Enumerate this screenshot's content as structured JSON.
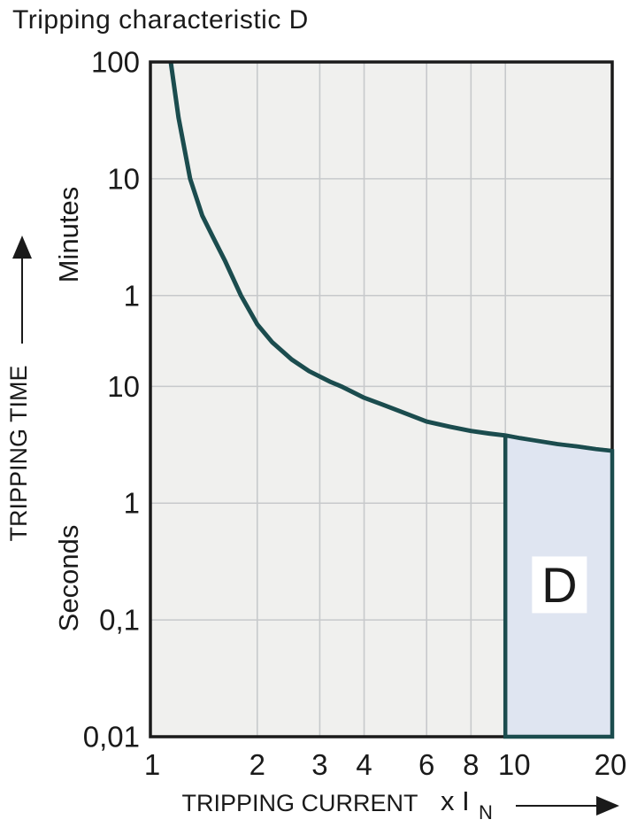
{
  "title": "Tripping characteristic D",
  "colors": {
    "background": "#ffffff",
    "plot_bg": "#f0f0ee",
    "grid": "#c7c9cb",
    "axis_border": "#1a1a1a",
    "curve": "#1b4c4e",
    "region_fill": "#dfe5f1",
    "region_border": "#1b4c4e",
    "text": "#1a1a1a",
    "region_label_bg": "#ffffff"
  },
  "chart_data": {
    "type": "line",
    "title": "Tripping characteristic D",
    "xlabel": "TRIPPING CURRENT",
    "x_unit_main": "x I",
    "x_unit_sub": "N",
    "ylabel": "TRIPPING TIME",
    "y_unit_upper": "Minutes",
    "y_unit_lower": "Seconds",
    "x_scale": "log",
    "x_range": [
      1,
      20
    ],
    "x_ticks": [
      {
        "label": "1",
        "value": 1,
        "dx": 2
      },
      {
        "label": "2",
        "value": 2,
        "dx": 0
      },
      {
        "label": "3",
        "value": 3,
        "dx": 0
      },
      {
        "label": "4",
        "value": 4,
        "dx": 0
      },
      {
        "label": "6",
        "value": 6,
        "dx": 0
      },
      {
        "label": "8",
        "value": 8,
        "dx": 0
      },
      {
        "label": "10",
        "value": 10,
        "dx": 10
      },
      {
        "label": "20",
        "value": 20,
        "dx": -2
      }
    ],
    "y_scale": "log",
    "y_range_seconds": [
      0.01,
      6000
    ],
    "y_ticks": [
      {
        "label": "100",
        "seconds": 6000
      },
      {
        "label": "10",
        "seconds": 600
      },
      {
        "label": "1",
        "seconds": 60
      },
      {
        "label": "10",
        "seconds": 10
      },
      {
        "label": "1",
        "seconds": 1
      },
      {
        "label": "0,1",
        "seconds": 0.1
      },
      {
        "label": "0,01",
        "seconds": 0.01
      }
    ],
    "grid": true,
    "legend": false,
    "series": [
      {
        "name": "thermal-tripping-curve",
        "points": [
          [
            1.141,
            6000
          ],
          [
            1.2,
            2000
          ],
          [
            1.294,
            600
          ],
          [
            1.4,
            290
          ],
          [
            1.5,
            190
          ],
          [
            1.62,
            120
          ],
          [
            1.8,
            60
          ],
          [
            2.0,
            34
          ],
          [
            2.2,
            24
          ],
          [
            2.5,
            17
          ],
          [
            2.8,
            13.5
          ],
          [
            3.2,
            11
          ],
          [
            3.45,
            10
          ],
          [
            4.0,
            8.0
          ],
          [
            4.5,
            7.0
          ],
          [
            5.0,
            6.2
          ],
          [
            6.0,
            5.0
          ],
          [
            7.0,
            4.5
          ],
          [
            8.0,
            4.15
          ],
          [
            9.0,
            3.95
          ],
          [
            10.0,
            3.8
          ],
          [
            11.0,
            3.6
          ],
          [
            12.0,
            3.45
          ],
          [
            14.0,
            3.2
          ],
          [
            16.0,
            3.05
          ],
          [
            18.0,
            2.9
          ],
          [
            20.0,
            2.8
          ]
        ]
      }
    ],
    "region": {
      "label": "D",
      "x_from": 10,
      "x_to": 20,
      "y_bottom_seconds": 0.01,
      "top_follows_curve": true,
      "label_at": [
        14.2,
        0.2
      ]
    }
  }
}
